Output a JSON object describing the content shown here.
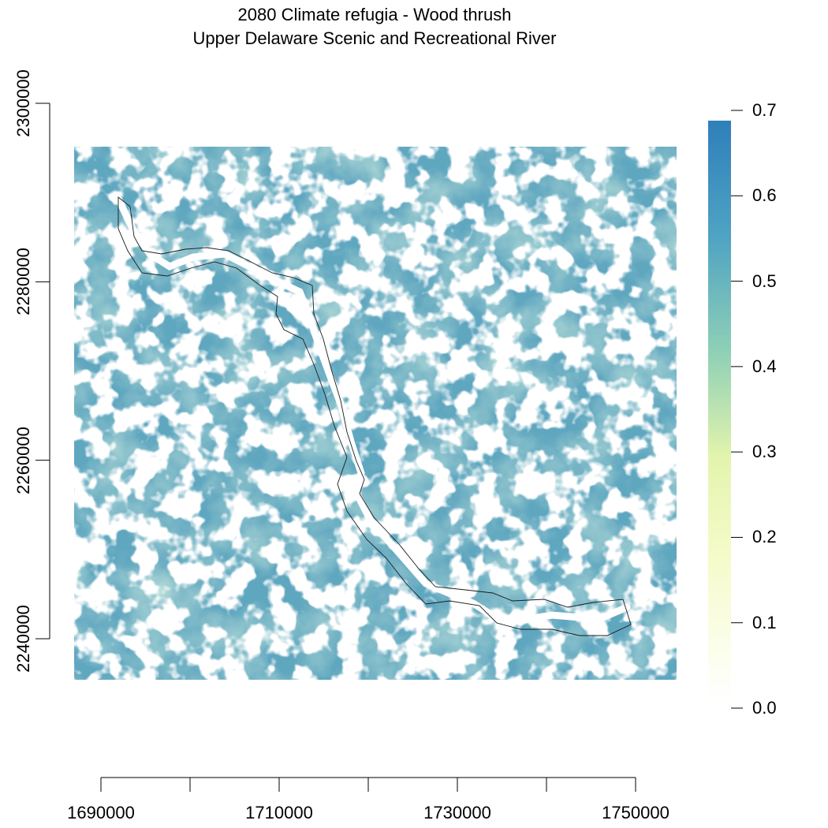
{
  "title": "2080 Climate refugia - Wood thrush",
  "subtitle": "Upper Delaware Scenic and Recreational River",
  "map": {
    "x_axis": {
      "ticks": [
        1690000,
        1710000,
        1730000,
        1750000
      ],
      "minor_ticks": [
        1690000,
        1700000,
        1710000,
        1720000,
        1730000,
        1740000,
        1750000
      ]
    },
    "y_axis": {
      "ticks": [
        2240000,
        2260000,
        2280000,
        2300000
      ]
    },
    "extent": {
      "xmin": 1687000,
      "xmax": 1754500,
      "ymin": 2235500,
      "ymax": 2295500
    },
    "colors": {
      "low": "#ffffff",
      "mid_low": "#eef8b4",
      "mid": "#8fd0b6",
      "high": "#2f7fba",
      "boundary": "#1a1a1a"
    },
    "raster_description": "Habitat suitability raster with river corridor shown as white gap and park boundary outlined"
  },
  "legend": {
    "labels": [
      "0.7",
      "0.6",
      "0.5",
      "0.4",
      "0.3",
      "0.2",
      "0.1",
      "0.0"
    ],
    "values": [
      0.7,
      0.6,
      0.5,
      0.4,
      0.3,
      0.2,
      0.1,
      0.0
    ],
    "min": 0.0,
    "max": 0.7
  },
  "chart_data": {
    "type": "heatmap",
    "title": "2080 Climate refugia - Wood thrush\nUpper Delaware Scenic and Recreational River",
    "xlabel": "",
    "ylabel": "",
    "xlim": [
      1687000,
      1754500
    ],
    "ylim": [
      2235500,
      2295500
    ],
    "x_ticks": [
      1690000,
      1710000,
      1730000,
      1750000
    ],
    "y_ticks": [
      2240000,
      2260000,
      2280000,
      2300000
    ],
    "color_scale": {
      "min": 0.0,
      "max": 0.7,
      "ticks": [
        0.0,
        0.1,
        0.2,
        0.3,
        0.4,
        0.5,
        0.6,
        0.7
      ]
    }
  }
}
